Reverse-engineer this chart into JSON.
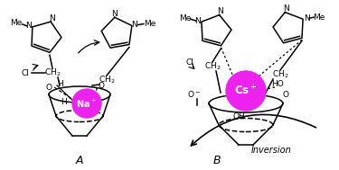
{
  "label_A": "A",
  "label_B": "B",
  "label_inversion": "Inversion",
  "ion_A_text": "Na+",
  "ion_B_text": "Cs+",
  "ion_color": "#EE22EE",
  "background": "#ffffff"
}
